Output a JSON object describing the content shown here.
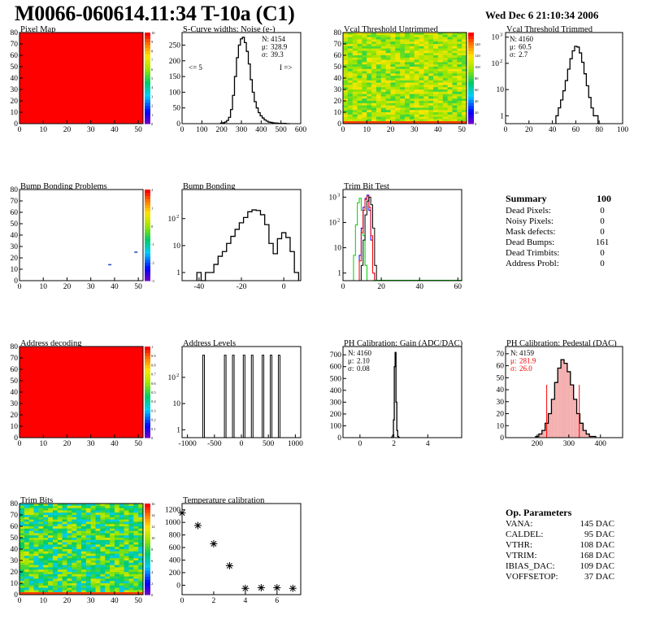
{
  "header": {
    "title": "M0066-060614.11:34 T-10a (C1)",
    "date": "Wed Dec  6 21:10:34 2006"
  },
  "colors": {
    "hist_line": "#000000",
    "red_fill": "#ff0000",
    "green_line": "#00cc00",
    "blue_line": "#0000ff",
    "red_line": "#ff0000",
    "axis": "#000000"
  },
  "chart_data": [
    {
      "id": "pixel_map",
      "type": "heatmap",
      "title": "Pixel Map",
      "xlim": [
        0,
        52
      ],
      "ylim": [
        0,
        80
      ],
      "xticks": [
        0,
        10,
        20,
        30,
        40,
        50
      ],
      "yticks": [
        0,
        10,
        20,
        30,
        40,
        50,
        60,
        70,
        80
      ],
      "zlim": [
        0,
        10
      ],
      "zticks": [
        0,
        1,
        2,
        3,
        4,
        5,
        6,
        7,
        8,
        9,
        10
      ],
      "uniform_value": 10
    },
    {
      "id": "scurve_noise",
      "type": "bar",
      "title": "S-Curve widths: Noise (e-)",
      "xlim": [
        0,
        600
      ],
      "ylim": [
        0,
        290
      ],
      "xticks": [
        0,
        100,
        200,
        300,
        400,
        500,
        600
      ],
      "yticks": [
        0,
        50,
        100,
        150,
        200,
        250
      ],
      "stats": [
        [
          "N:",
          "4154"
        ],
        [
          "μ:",
          "328.9"
        ],
        [
          "σ:",
          "39.3"
        ]
      ],
      "annotations": [
        "<= 5",
        "I =>"
      ],
      "x": [
        200,
        210,
        220,
        230,
        240,
        250,
        260,
        270,
        280,
        290,
        300,
        310,
        320,
        330,
        340,
        350,
        360,
        370,
        380,
        390,
        400,
        410,
        420,
        430,
        440,
        450,
        460,
        470,
        480,
        490,
        500,
        510,
        520,
        530,
        540
      ],
      "values": [
        2,
        3,
        5,
        10,
        20,
        45,
        90,
        150,
        210,
        250,
        270,
        275,
        258,
        230,
        190,
        140,
        100,
        70,
        50,
        35,
        25,
        18,
        12,
        8,
        5,
        4,
        3,
        2,
        2,
        1,
        1,
        1,
        1,
        0,
        0
      ]
    },
    {
      "id": "vcal_untrimmed",
      "type": "heatmap",
      "title": "Vcal Threshold Untrimmed",
      "xlim": [
        0,
        52
      ],
      "ylim": [
        0,
        80
      ],
      "xticks": [
        0,
        10,
        20,
        30,
        40,
        50
      ],
      "yticks": [
        0,
        10,
        20,
        30,
        40,
        50,
        60,
        70,
        80
      ],
      "zlim": [
        0,
        160
      ],
      "zticks": [
        0,
        20,
        40,
        60,
        80,
        100,
        120,
        140
      ],
      "value_range": [
        80,
        120
      ]
    },
    {
      "id": "vcal_trimmed",
      "type": "bar",
      "title": "Vcal Threshold Trimmed",
      "log_y": true,
      "xlim": [
        0,
        100
      ],
      "ylim": [
        0.5,
        1500
      ],
      "xticks": [
        0,
        20,
        40,
        60,
        80,
        100
      ],
      "yticks": [
        1,
        10,
        100,
        1000
      ],
      "stats": [
        [
          "N:",
          "4160"
        ],
        [
          "μ:",
          "60.5"
        ],
        [
          "σ:",
          "2.7"
        ]
      ],
      "x": [
        44,
        46,
        48,
        50,
        52,
        54,
        56,
        58,
        60,
        62,
        64,
        66,
        68,
        70,
        72,
        74,
        76,
        78,
        80
      ],
      "values": [
        1,
        2,
        4,
        9,
        22,
        60,
        150,
        300,
        450,
        420,
        250,
        110,
        40,
        14,
        5,
        2,
        1,
        1,
        0
      ]
    },
    {
      "id": "bump_problems",
      "type": "heatmap",
      "title": "Bump Bonding Problems",
      "xlim": [
        0,
        52
      ],
      "ylim": [
        0,
        80
      ],
      "xticks": [
        0,
        10,
        20,
        30,
        40,
        50
      ],
      "yticks": [
        0,
        10,
        20,
        30,
        40,
        50,
        60,
        70,
        80
      ],
      "zlim": [
        -3,
        2
      ],
      "zticks": [
        -3,
        -2,
        -1,
        0,
        1,
        2
      ],
      "points": [
        [
          38,
          14
        ],
        [
          49,
          25
        ]
      ]
    },
    {
      "id": "bump_bonding",
      "type": "bar",
      "title": "Bump Bonding",
      "log_y": true,
      "xlim": [
        -48,
        8
      ],
      "ylim": [
        0.5,
        1200
      ],
      "xticks": [
        -40,
        -20,
        0
      ],
      "yticks": [
        1,
        10,
        100
      ],
      "x": [
        -40,
        -38,
        -36,
        -34,
        -32,
        -30,
        -28,
        -26,
        -24,
        -22,
        -20,
        -18,
        -16,
        -14,
        -12,
        -10,
        -8,
        -6,
        -4,
        -2,
        0,
        2,
        4,
        6
      ],
      "values": [
        1,
        0,
        1,
        1,
        2,
        4,
        6,
        12,
        22,
        40,
        70,
        110,
        180,
        210,
        200,
        140,
        60,
        12,
        5,
        18,
        30,
        20,
        6,
        1
      ]
    },
    {
      "id": "trim_bit_test",
      "type": "line",
      "title": "Trim Bit Test",
      "log_y": true,
      "xlim": [
        0,
        62
      ],
      "ylim": [
        0.5,
        2000
      ],
      "xticks": [
        0,
        20,
        40,
        60
      ],
      "yticks": [
        1,
        10,
        100,
        1000
      ],
      "series": [
        {
          "color": "#00cc00",
          "x": [
            6,
            7,
            8,
            9,
            10,
            11,
            12
          ],
          "values": [
            5,
            80,
            600,
            900,
            300,
            30,
            2
          ]
        },
        {
          "color": "#0000ff",
          "x": [
            9,
            10,
            11,
            12,
            13,
            14,
            15,
            16
          ],
          "values": [
            5,
            60,
            400,
            900,
            1200,
            300,
            20,
            1
          ]
        },
        {
          "color": "#ff0000",
          "x": [
            9,
            10,
            11,
            12,
            13,
            14,
            15,
            16
          ],
          "values": [
            3,
            40,
            300,
            800,
            1100,
            400,
            30,
            1
          ]
        },
        {
          "color": "#000000",
          "x": [
            10,
            11,
            12,
            13,
            14,
            15,
            16,
            17
          ],
          "values": [
            2,
            20,
            200,
            700,
            1000,
            500,
            60,
            2
          ]
        }
      ]
    },
    {
      "id": "address_decoding",
      "type": "heatmap",
      "title": "Address decoding",
      "xlim": [
        0,
        52
      ],
      "ylim": [
        0,
        80
      ],
      "xticks": [
        0,
        10,
        20,
        30,
        40,
        50
      ],
      "yticks": [
        0,
        10,
        20,
        30,
        40,
        50,
        60,
        70,
        80
      ],
      "zlim": [
        0,
        1
      ],
      "zticks": [
        0,
        0.1,
        0.2,
        0.3,
        0.4,
        0.5,
        0.6,
        0.7,
        0.8,
        0.9,
        1
      ],
      "uniform_value": 1
    },
    {
      "id": "address_levels",
      "type": "bar",
      "title": "Address Levels",
      "log_y": true,
      "xlim": [
        -1100,
        1100
      ],
      "ylim": [
        0.5,
        1500
      ],
      "xticks": [
        -1000,
        -500,
        0,
        500,
        1000
      ],
      "yticks": [
        1,
        10,
        100
      ],
      "x": [
        -700,
        -300,
        -150,
        50,
        200,
        400,
        550,
        700
      ],
      "values": [
        700,
        700,
        700,
        700,
        700,
        700,
        700,
        700
      ]
    },
    {
      "id": "ph_gain",
      "type": "bar",
      "title": "PH Calibration: Gain (ADC/DAC)",
      "xlim": [
        -1,
        6
      ],
      "ylim": [
        0,
        770
      ],
      "xticks": [
        0,
        2,
        4
      ],
      "yticks": [
        0,
        100,
        200,
        300,
        400,
        500,
        600,
        700
      ],
      "stats": [
        [
          "N:",
          "4160"
        ],
        [
          "μ:",
          "2.10"
        ],
        [
          "σ:",
          "0.08"
        ]
      ],
      "x": [
        1.9,
        1.95,
        2.0,
        2.05,
        2.1,
        2.15,
        2.2,
        2.25,
        2.3
      ],
      "values": [
        5,
        20,
        150,
        600,
        720,
        300,
        60,
        10,
        2
      ]
    },
    {
      "id": "ph_pedestal",
      "type": "bar",
      "title": "PH Calibration: Pedestal (DAC)",
      "xlim": [
        100,
        470
      ],
      "ylim": [
        0,
        76
      ],
      "xticks": [
        200,
        300,
        400
      ],
      "yticks": [
        0,
        10,
        20,
        30,
        40,
        50,
        60,
        70
      ],
      "stats": [
        [
          "N:",
          "4159"
        ],
        [
          "μ:",
          "281.9",
          "#ff0000"
        ],
        [
          "σ:",
          "26.0",
          "#ff0000"
        ]
      ],
      "fit_lines": [
        230,
        333
      ],
      "x": [
        200,
        210,
        220,
        230,
        240,
        250,
        260,
        270,
        280,
        290,
        300,
        310,
        320,
        330,
        340,
        350,
        360,
        370,
        380
      ],
      "values": [
        1,
        3,
        6,
        12,
        20,
        32,
        46,
        58,
        65,
        62,
        55,
        44,
        32,
        20,
        12,
        6,
        3,
        1,
        1
      ]
    },
    {
      "id": "trim_bits",
      "type": "heatmap",
      "title": "Trim Bits",
      "xlim": [
        0,
        52
      ],
      "ylim": [
        0,
        80
      ],
      "xticks": [
        0,
        10,
        20,
        30,
        40,
        50
      ],
      "yticks": [
        0,
        10,
        20,
        30,
        40,
        50,
        60,
        70,
        80
      ],
      "zlim": [
        0,
        16
      ],
      "zticks": [
        0,
        2,
        4,
        6,
        8,
        10,
        12,
        14,
        16
      ],
      "value_range": [
        5,
        11
      ]
    },
    {
      "id": "temperature_calibration",
      "type": "scatter",
      "title": "Temperature calibration",
      "xlim": [
        0,
        7.5
      ],
      "ylim": [
        -150,
        1300
      ],
      "xticks": [
        0,
        2,
        4,
        6
      ],
      "yticks": [
        0,
        200,
        400,
        600,
        800,
        1000,
        1200
      ],
      "x": [
        0,
        1,
        2,
        3,
        4,
        5,
        6,
        7
      ],
      "values": [
        1150,
        950,
        660,
        310,
        -50,
        -40,
        -40,
        -50
      ]
    }
  ],
  "summary": {
    "title": "Summary",
    "total": "100",
    "rows": [
      {
        "label": "Dead Pixels:",
        "value": "0"
      },
      {
        "label": "Noisy Pixels:",
        "value": "0"
      },
      {
        "label": "Mask defects:",
        "value": "0"
      },
      {
        "label": "Dead Bumps:",
        "value": "161"
      },
      {
        "label": "Dead Trimbits:",
        "value": "0"
      },
      {
        "label": "Address Probl:",
        "value": "0"
      }
    ]
  },
  "op_parameters": {
    "title": "Op. Parameters",
    "rows": [
      {
        "label": "VANA:",
        "value": "145 DAC"
      },
      {
        "label": "CALDEL:",
        "value": "95 DAC"
      },
      {
        "label": "VTHR:",
        "value": "108 DAC"
      },
      {
        "label": "VTRIM:",
        "value": "168 DAC"
      },
      {
        "label": "IBIAS_DAC:",
        "value": "109 DAC"
      },
      {
        "label": "VOFFSETOP:",
        "value": "37 DAC"
      }
    ]
  }
}
